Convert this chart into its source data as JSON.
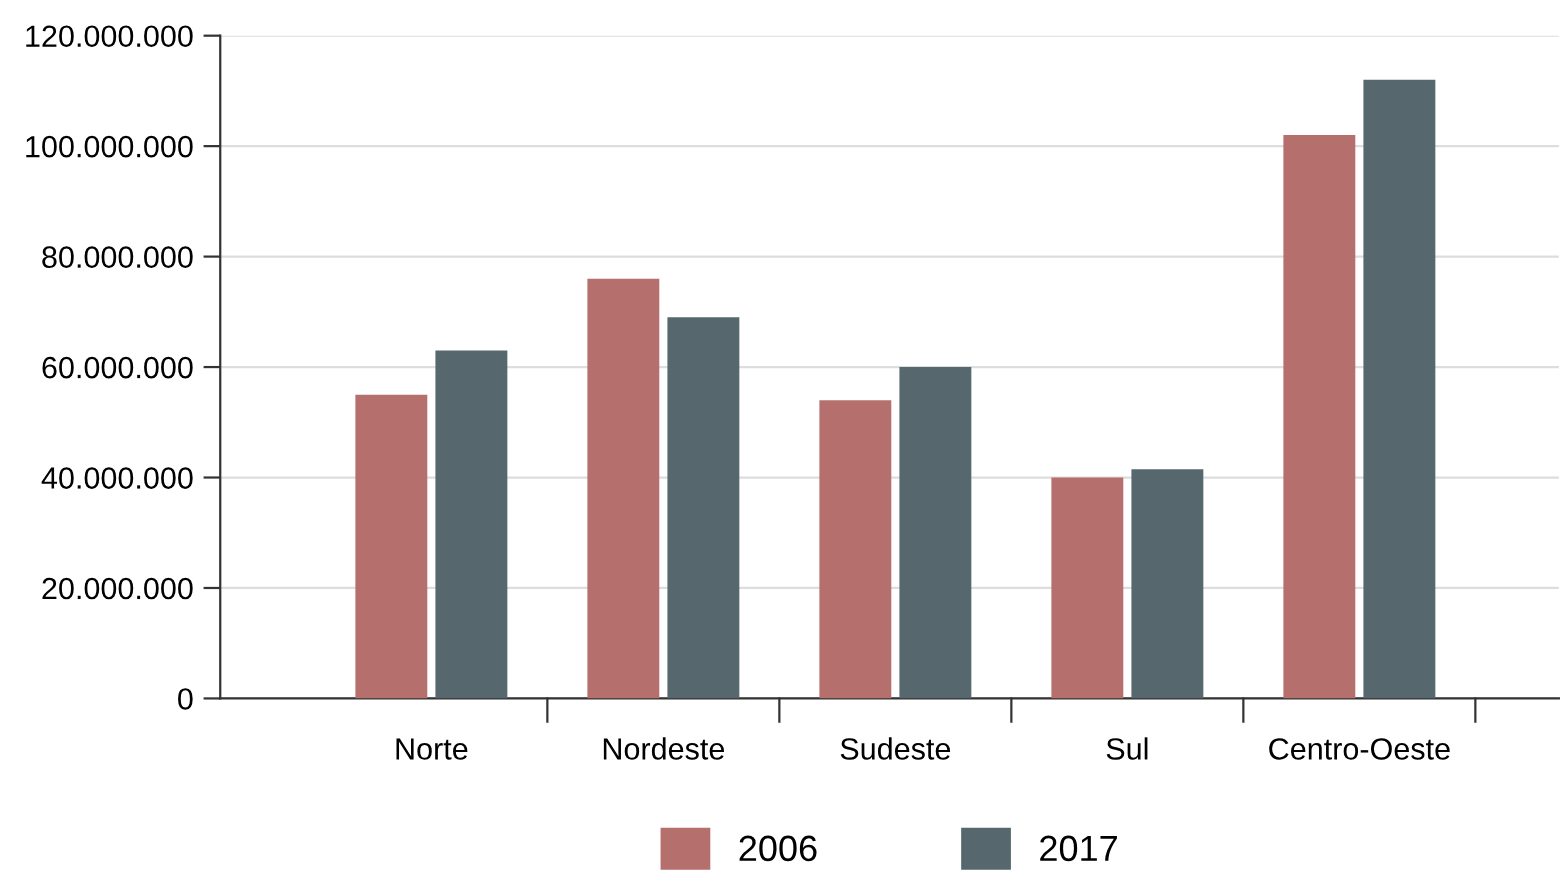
{
  "chart_data": {
    "type": "bar",
    "categories": [
      "Norte",
      "Nordeste",
      "Sudeste",
      "Sul",
      "Centro-Oeste"
    ],
    "series": [
      {
        "name": "2006",
        "color": "#b5706d",
        "values": [
          55000000,
          76000000,
          54000000,
          40000000,
          102000000
        ]
      },
      {
        "name": "2017",
        "color": "#56676d",
        "values": [
          63000000,
          69000000,
          60000000,
          41500000,
          112000000
        ]
      }
    ],
    "ylim": [
      0,
      120000000
    ],
    "yticks": [
      0,
      {
        "value": 20000000,
        "label": "20.000.000"
      },
      {
        "value": 40000000,
        "label": "40.000.000"
      },
      {
        "value": 60000000,
        "label": "60.000.000"
      },
      {
        "value": 80000000,
        "label": "80.000.000"
      },
      {
        "value": 100000000,
        "label": "100.000.000"
      },
      {
        "value": 120000000,
        "label": "120.000.000"
      }
    ],
    "grid": "y",
    "legend": "bottom"
  }
}
